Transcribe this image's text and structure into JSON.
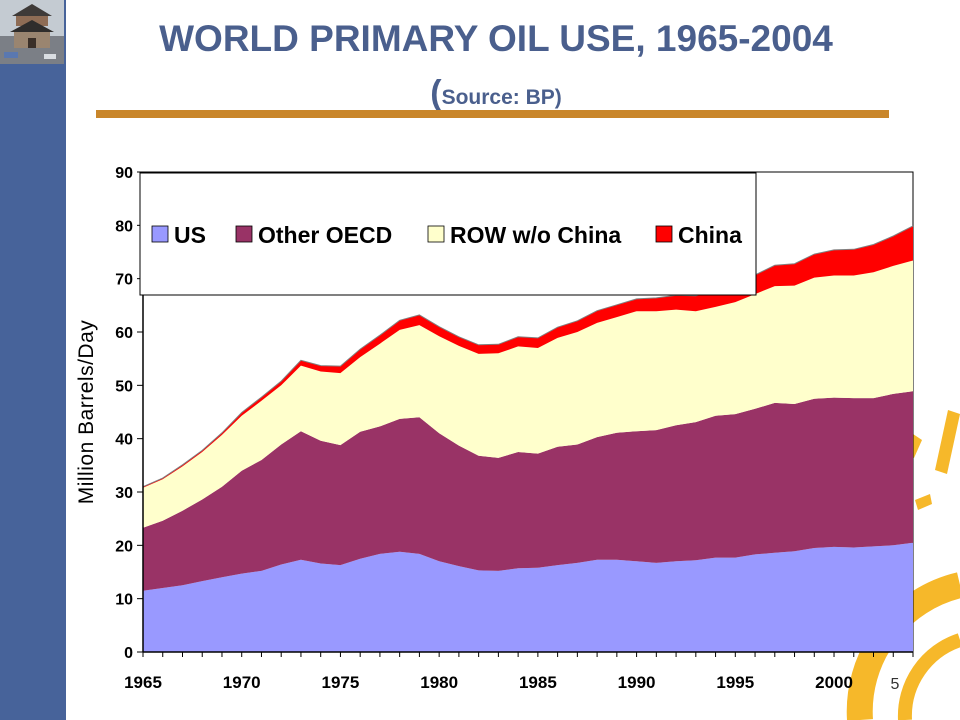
{
  "slide": {
    "title": "WORLD PRIMARY OIL USE, 1965-2004",
    "subtitle_open": "(",
    "subtitle_text": "Source: BP",
    "subtitle_close": ")",
    "page_number": "5"
  },
  "colors": {
    "sidebar": "#47639a",
    "title": "#4a5f8d",
    "rule": "#c9862a",
    "decoration": "#f6b82a"
  },
  "chart_data": {
    "type": "area",
    "stacked": true,
    "title": "",
    "xlabel": "",
    "ylabel": "Million Barrels/Day",
    "ylim": [
      0,
      90
    ],
    "yticks": [
      0,
      10,
      20,
      30,
      40,
      50,
      60,
      70,
      80,
      90
    ],
    "xlim": [
      1965,
      2004
    ],
    "xticks": [
      1965,
      1970,
      1975,
      1980,
      1985,
      1990,
      1995,
      2000
    ],
    "grid": false,
    "legend_position": "top",
    "x": [
      1965,
      1966,
      1967,
      1968,
      1969,
      1970,
      1971,
      1972,
      1973,
      1974,
      1975,
      1976,
      1977,
      1978,
      1979,
      1980,
      1981,
      1982,
      1983,
      1984,
      1985,
      1986,
      1987,
      1988,
      1989,
      1990,
      1991,
      1992,
      1993,
      1994,
      1995,
      1996,
      1997,
      1998,
      1999,
      2000,
      2001,
      2002,
      2003,
      2004
    ],
    "series": [
      {
        "name": "US",
        "color": "#9999ff",
        "values": [
          11.5,
          12.0,
          12.5,
          13.3,
          14.0,
          14.7,
          15.2,
          16.4,
          17.3,
          16.6,
          16.3,
          17.5,
          18.4,
          18.8,
          18.4,
          17.0,
          16.1,
          15.3,
          15.2,
          15.7,
          15.8,
          16.3,
          16.7,
          17.3,
          17.3,
          17.0,
          16.7,
          17.0,
          17.2,
          17.7,
          17.7,
          18.3,
          18.6,
          18.9,
          19.5,
          19.7,
          19.6,
          19.8,
          20.0,
          20.5
        ]
      },
      {
        "name": "Other OECD",
        "color": "#993366",
        "values": [
          11.8,
          12.6,
          14.0,
          15.3,
          17.0,
          19.3,
          20.8,
          22.5,
          24.1,
          23.0,
          22.5,
          23.8,
          23.9,
          24.9,
          25.6,
          24.0,
          22.6,
          21.5,
          21.2,
          21.8,
          21.4,
          22.2,
          22.2,
          23.0,
          23.8,
          24.4,
          24.9,
          25.5,
          25.9,
          26.6,
          26.9,
          27.3,
          28.1,
          27.6,
          28.0,
          28.0,
          28.0,
          27.8,
          28.4,
          28.4
        ]
      },
      {
        "name": "ROW w/o China",
        "color": "#ffffcc",
        "values": [
          7.5,
          7.8,
          8.3,
          8.9,
          9.7,
          10.3,
          11.1,
          11.1,
          12.3,
          13.0,
          13.5,
          14.0,
          15.5,
          16.7,
          17.3,
          18.2,
          18.7,
          19.1,
          19.6,
          19.8,
          19.8,
          20.4,
          21.1,
          21.4,
          21.7,
          22.5,
          22.3,
          21.7,
          20.8,
          20.4,
          21.0,
          21.5,
          21.9,
          22.2,
          22.7,
          22.9,
          23.0,
          23.6,
          24.0,
          24.5
        ]
      },
      {
        "name": "China",
        "color": "#ff0000",
        "values": [
          0.2,
          0.2,
          0.3,
          0.3,
          0.4,
          0.6,
          0.7,
          0.8,
          1.0,
          1.1,
          1.3,
          1.5,
          1.6,
          1.8,
          1.9,
          1.8,
          1.7,
          1.7,
          1.7,
          1.8,
          1.9,
          2.0,
          2.1,
          2.3,
          2.3,
          2.3,
          2.5,
          2.7,
          2.9,
          3.1,
          3.4,
          3.6,
          3.9,
          4.1,
          4.4,
          4.8,
          4.9,
          5.2,
          5.6,
          6.5
        ]
      }
    ]
  }
}
